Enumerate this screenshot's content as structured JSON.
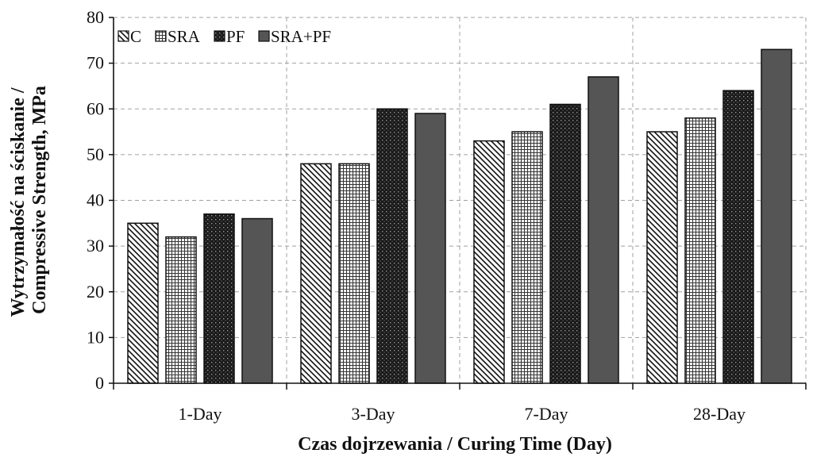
{
  "chart_data": {
    "type": "bar",
    "title": "",
    "xlabel": "Czas dojrzewania / Curing Time (Day)",
    "ylabel": "Wytrzymałość na ściskanie / Compressive Strength, MPa",
    "ylabel_lines": [
      "Wytrzymałość na ściskanie /",
      "Compressive Strength, MPa"
    ],
    "categories": [
      "1-Day",
      "3-Day",
      "7-Day",
      "28-Day"
    ],
    "ylim": [
      0,
      80
    ],
    "yticks": [
      0,
      10,
      20,
      30,
      40,
      50,
      60,
      70,
      80
    ],
    "grid": true,
    "legend_position": "top-left",
    "series": [
      {
        "name": "C",
        "values": [
          35,
          48,
          53,
          55
        ],
        "pattern": "diagonal-hatch",
        "color": "#222222"
      },
      {
        "name": "SRA",
        "values": [
          32,
          48,
          55,
          58
        ],
        "pattern": "grid-hatch",
        "color": "#222222"
      },
      {
        "name": "PF",
        "values": [
          37,
          60,
          61,
          64
        ],
        "pattern": "dotted-dark",
        "color": "#1a1a1a"
      },
      {
        "name": "SRA+PF",
        "values": [
          36,
          59,
          67,
          73
        ],
        "pattern": "solid",
        "color": "#555555"
      }
    ]
  }
}
